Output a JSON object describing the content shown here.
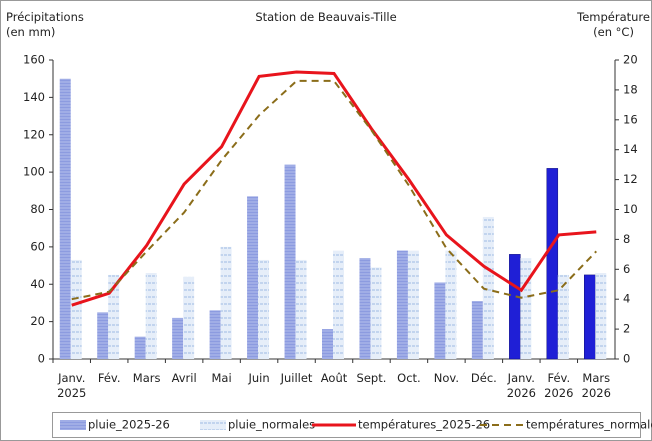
{
  "chart_data": {
    "type": "bar_line",
    "title": "Station de Beauvais-Tille",
    "y_label": "Précipitations\n(en mm)",
    "y2_label": "Température\n(en °C)",
    "categories": [
      "Janv.\n2025",
      "Fév.",
      "Mars",
      "Avril",
      "Mai",
      "Juin",
      "Juillet",
      "Août",
      "Sept.",
      "Oct.",
      "Nov.",
      "Déc.",
      "Janv.\n2026",
      "Fév.\n2026",
      "Mars\n2026"
    ],
    "ylim": [
      0,
      160
    ],
    "yticks": [
      0,
      20,
      40,
      60,
      80,
      100,
      120,
      140,
      160
    ],
    "y2lim": [
      0,
      20
    ],
    "y2ticks": [
      0,
      2,
      4,
      6,
      8,
      10,
      12,
      14,
      16,
      18,
      20
    ],
    "series": [
      {
        "name": "pluie_2025-26",
        "kind": "bar",
        "color": "#8c9be0",
        "colors": [
          "#8c9be0",
          "#8c9be0",
          "#8c9be0",
          "#8c9be0",
          "#8c9be0",
          "#8c9be0",
          "#8c9be0",
          "#8c9be0",
          "#8c9be0",
          "#8c9be0",
          "#8c9be0",
          "#8c9be0",
          "#1f1fd6",
          "#1f1fd6",
          "#1f1fd6"
        ],
        "values": [
          150,
          25,
          12,
          22,
          26,
          87,
          104,
          16,
          54,
          58,
          41,
          31,
          56,
          102,
          45
        ]
      },
      {
        "name": "pluie_normales",
        "kind": "bar",
        "color": "#a9c3e6",
        "values": [
          53,
          45,
          46,
          44,
          60,
          53,
          53,
          58,
          49,
          58,
          58,
          76,
          54,
          45,
          46
        ]
      },
      {
        "name": "températures_2025-26",
        "kind": "line",
        "axis": "y2",
        "color": "#e8141c",
        "values": [
          3.6,
          4.4,
          7.6,
          11.7,
          14.2,
          18.9,
          19.2,
          19.1,
          15.4,
          12,
          8.3,
          6.2,
          4.6,
          8.3,
          8.5
        ]
      },
      {
        "name": "températures_normales",
        "kind": "line",
        "axis": "y2",
        "color": "#8b6d1a",
        "dashed": true,
        "values": [
          4.0,
          4.5,
          7.2,
          9.8,
          13.3,
          16.3,
          18.6,
          18.6,
          15.3,
          11.6,
          7.4,
          4.7,
          4.1,
          4.6,
          7.2
        ]
      }
    ]
  }
}
